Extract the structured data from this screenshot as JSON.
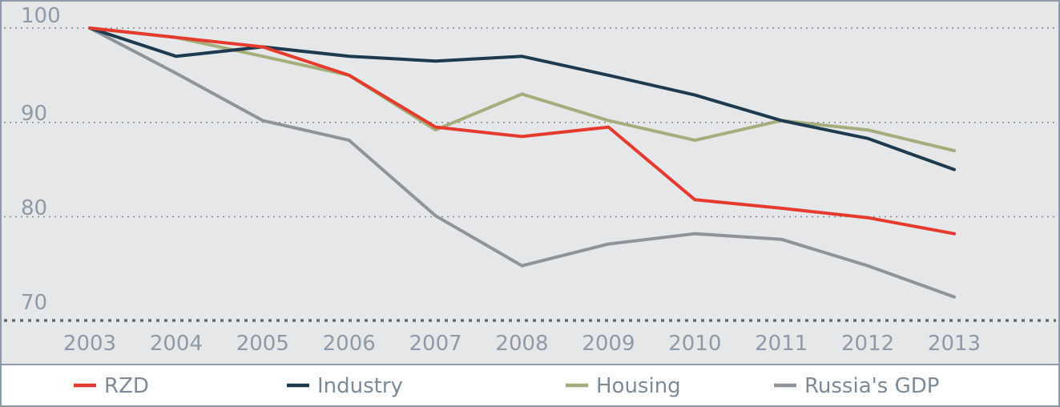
{
  "chart_data": {
    "type": "line",
    "title": "",
    "xlabel": "",
    "ylabel": "",
    "categories": [
      "2003",
      "2004",
      "2005",
      "2006",
      "2007",
      "2008",
      "2009",
      "2010",
      "2011",
      "2012",
      "2013"
    ],
    "ylim": [
      69,
      102
    ],
    "yticks": [
      100,
      90,
      80,
      70
    ],
    "grid": "horizontal dotted",
    "legend": "bottom",
    "series": [
      {
        "name": "RZD",
        "color": "#e63a2e",
        "values": [
          100,
          99,
          98,
          95,
          89.5,
          88.5,
          89.5,
          81.8,
          80.9,
          79.9,
          78.2
        ]
      },
      {
        "name": "Industry",
        "color": "#1e3a4f",
        "values": [
          100,
          97,
          98,
          97,
          96.5,
          97,
          95,
          92.9,
          90.2,
          88.3,
          85
        ]
      },
      {
        "name": "Housing",
        "color": "#a6ad7c",
        "values": [
          100,
          99,
          97,
          95,
          89.2,
          93,
          90.2,
          88.1,
          90.2,
          89.2,
          87
        ]
      },
      {
        "name": "Russia's GDP",
        "color": "#8f939a",
        "values": [
          100,
          95.2,
          90.2,
          88.1,
          80.1,
          74.8,
          77.1,
          78.2,
          77.6,
          74.8,
          71.5
        ]
      }
    ]
  }
}
